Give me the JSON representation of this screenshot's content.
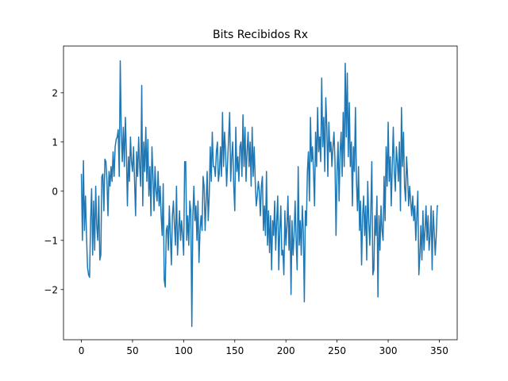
{
  "chart_data": {
    "type": "line",
    "title": "Bits Recibidos Rx",
    "color": "#1f77b4",
    "xlim": [
      -17.5,
      367.5
    ],
    "ylim": [
      -3.02,
      2.95
    ],
    "xticks": [
      0,
      50,
      100,
      150,
      200,
      250,
      300,
      350
    ],
    "yticks": [
      {
        "value": -2,
        "label": "−2"
      },
      {
        "value": -1,
        "label": "−1"
      },
      0,
      1,
      2
    ],
    "values": [
      0.35,
      -1.0,
      0.62,
      -0.8,
      -0.1,
      -0.9,
      -1.55,
      -1.7,
      -1.75,
      -0.6,
      0.05,
      -1.3,
      -0.2,
      -1.2,
      0.1,
      -0.7,
      -1.0,
      -0.1,
      -1.4,
      -1.3,
      0.3,
      0.35,
      -0.4,
      0.65,
      0.6,
      0.2,
      -0.5,
      0.4,
      0.1,
      0.5,
      0.2,
      0.8,
      0.3,
      0.9,
      1.05,
      1.1,
      1.25,
      0.3,
      2.65,
      1.2,
      0.6,
      1.3,
      0.5,
      1.5,
      0.8,
      -0.3,
      0.7,
      0.2,
      1.1,
      0.6,
      0.4,
      0.9,
      0.2,
      -0.5,
      0.8,
      0.3,
      1.1,
      0.5,
      0.1,
      2.15,
      -0.3,
      1.0,
      0.4,
      1.3,
      0.2,
      1.05,
      -0.1,
      0.5,
      -0.5,
      0.9,
      0.3,
      -0.4,
      0.5,
      0.0,
      -0.2,
      0.4,
      -0.3,
      0.1,
      -0.5,
      -0.9,
      0.15,
      -1.8,
      -1.95,
      -0.8,
      -0.7,
      -1.2,
      -0.3,
      -0.9,
      -1.5,
      -0.5,
      -0.2,
      -0.7,
      -1.1,
      0.1,
      -1.3,
      -0.8,
      -0.4,
      -1.0,
      -0.6,
      -0.9,
      -1.3,
      0.6,
      0.6,
      -1.0,
      -0.5,
      -1.1,
      -0.2,
      -0.4,
      -2.75,
      -0.5,
      0.1,
      -0.6,
      -0.3,
      -1.0,
      -0.2,
      -1.45,
      -0.8,
      -0.5,
      -0.8,
      0.3,
      0.1,
      -0.8,
      -0.2,
      0.4,
      -0.6,
      -0.1,
      0.9,
      0.2,
      1.2,
      0.5,
      0.5,
      0.3,
      0.8,
      1.0,
      0.2,
      0.4,
      0.9,
      0.3,
      1.6,
      0.5,
      1.2,
      0.8,
      0.1,
      0.6,
      1.1,
      1.6,
      0.2,
      0.7,
      1.0,
      0.1,
      -0.4,
      1.3,
      0.4,
      0.7,
      0.2,
      0.9,
      1.0,
      0.3,
      1.55,
      0.5,
      1.3,
      0.2,
      0.8,
      1.2,
      0.5,
      1.0,
      0.1,
      1.3,
      0.3,
      0.9,
      0.2,
      -0.3,
      -0.1,
      0.2,
      0.0,
      -0.5,
      0.1,
      0.3,
      -0.8,
      -0.3,
      -0.9,
      0.4,
      -1.1,
      -0.4,
      -1.25,
      -0.5,
      -1.6,
      -0.6,
      -0.9,
      -0.2,
      -1.2,
      -0.6,
      -0.1,
      -1.6,
      -0.8,
      -0.3,
      -1.3,
      -1.2,
      -1.7,
      -0.4,
      -1.1,
      -0.7,
      -0.1,
      -1.2,
      -0.5,
      -2.1,
      -0.6,
      -1.3,
      -0.9,
      -0.2,
      -1.0,
      -1.6,
      0.5,
      -1.1,
      -0.6,
      -1.3,
      -0.3,
      -0.8,
      -2.25,
      -0.4,
      -0.7,
      0.4,
      0.8,
      -0.2,
      1.5,
      0.6,
      0.9,
      0.4,
      -0.3,
      1.2,
      0.5,
      1.7,
      0.8,
      1.1,
      0.6,
      2.3,
      0.9,
      1.5,
      0.4,
      1.9,
      1.3,
      0.3,
      1.4,
      0.8,
      1.0,
      0.5,
      0.9,
      1.2,
      0.6,
      -0.9,
      0.4,
      1.0,
      -0.2,
      0.8,
      1.2,
      0.3,
      1.6,
      0.5,
      2.6,
      1.1,
      2.4,
      0.7,
      1.8,
      0.5,
      1.0,
      -0.3,
      0.9,
      0.4,
      1.7,
      0.2,
      -0.4,
      0.5,
      -0.8,
      -0.2,
      -1.5,
      -0.5,
      -0.1,
      -0.9,
      -0.3,
      -1.4,
      0.2,
      -0.6,
      -1.1,
      -0.4,
      0.6,
      -1.7,
      -1.6,
      -0.5,
      -0.9,
      -0.1,
      -2.15,
      -0.5,
      -1.2,
      -0.3,
      -0.8,
      -1.0,
      0.3,
      -0.6,
      0.9,
      0.1,
      1.4,
      0.2,
      0.7,
      -0.3,
      0.5,
      1.3,
      0.4,
      0.0,
      0.9,
      0.6,
      0.2,
      1.0,
      -0.4,
      1.7,
      0.5,
      1.2,
      0.1,
      -0.2,
      0.7,
      0.3,
      -0.3,
      0.1,
      -0.2,
      -0.5,
      -0.1,
      -0.6,
      -0.3,
      -1.0,
      -0.5,
      0.0,
      -1.7,
      -1.3,
      -0.7,
      -1.4,
      -0.4,
      -1.2,
      -0.8,
      -0.3,
      -1.0,
      -0.5,
      -1.2,
      -0.9,
      -0.3,
      -1.6,
      -0.4,
      -0.8,
      -1.3,
      -0.9,
      -0.3,
      -0.3
    ]
  }
}
